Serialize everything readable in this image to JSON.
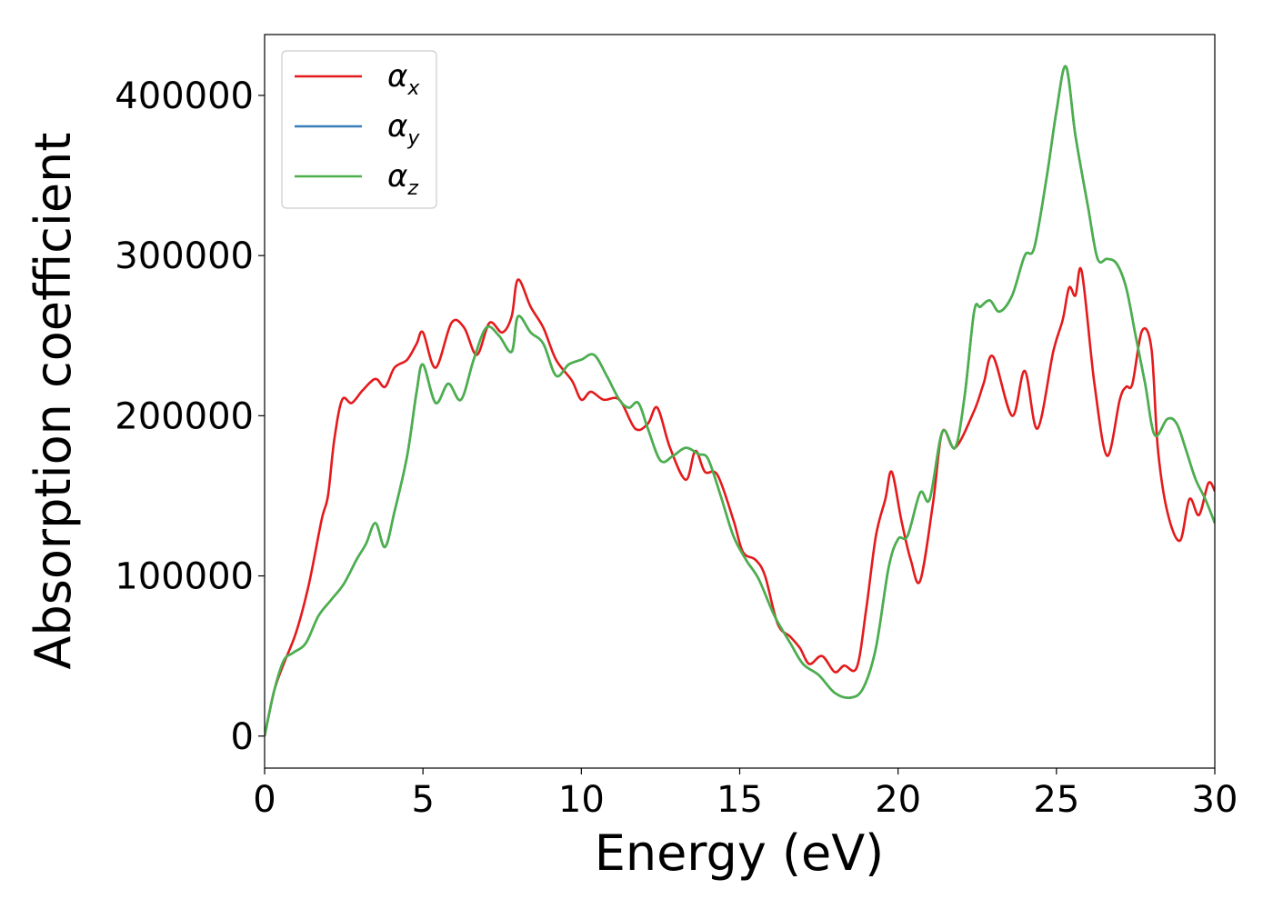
{
  "chart_data": {
    "type": "line",
    "title": "",
    "xlabel": "Energy (eV)",
    "ylabel": "Absorption coefficient",
    "xlim": [
      0,
      30
    ],
    "ylim": [
      -20000,
      438000
    ],
    "xticks": [
      0,
      5,
      10,
      15,
      20,
      25,
      30
    ],
    "xtick_labels": [
      "0",
      "5",
      "10",
      "15",
      "20",
      "25",
      "30"
    ],
    "yticks": [
      0,
      100000,
      200000,
      300000,
      400000
    ],
    "ytick_labels": [
      "0",
      "100000",
      "200000",
      "300000",
      "400000"
    ],
    "grid": false,
    "legend_position": "top-left",
    "series": [
      {
        "name": "α_x",
        "legend_base": "α",
        "legend_sub": "x",
        "color": "#e41a1c",
        "points": [
          [
            0,
            0
          ],
          [
            0.3,
            28000
          ],
          [
            0.6,
            45000
          ],
          [
            1.0,
            65000
          ],
          [
            1.4,
            95000
          ],
          [
            1.8,
            135000
          ],
          [
            2.0,
            150000
          ],
          [
            2.2,
            185000
          ],
          [
            2.45,
            210000
          ],
          [
            2.75,
            208000
          ],
          [
            3.1,
            216000
          ],
          [
            3.5,
            223000
          ],
          [
            3.8,
            218000
          ],
          [
            4.1,
            230000
          ],
          [
            4.5,
            235000
          ],
          [
            4.8,
            245000
          ],
          [
            5.0,
            252000
          ],
          [
            5.4,
            230000
          ],
          [
            5.9,
            258000
          ],
          [
            6.3,
            255000
          ],
          [
            6.7,
            238000
          ],
          [
            7.1,
            258000
          ],
          [
            7.5,
            252000
          ],
          [
            7.8,
            262000
          ],
          [
            8.0,
            285000
          ],
          [
            8.4,
            268000
          ],
          [
            8.8,
            255000
          ],
          [
            9.2,
            235000
          ],
          [
            9.7,
            222000
          ],
          [
            10.0,
            210000
          ],
          [
            10.3,
            215000
          ],
          [
            10.7,
            210000
          ],
          [
            11.2,
            210000
          ],
          [
            11.7,
            192000
          ],
          [
            12.1,
            195000
          ],
          [
            12.4,
            205000
          ],
          [
            12.8,
            180000
          ],
          [
            13.3,
            160000
          ],
          [
            13.6,
            178000
          ],
          [
            13.9,
            165000
          ],
          [
            14.3,
            163000
          ],
          [
            14.8,
            135000
          ],
          [
            15.1,
            115000
          ],
          [
            15.5,
            110000
          ],
          [
            15.8,
            100000
          ],
          [
            16.2,
            70000
          ],
          [
            16.6,
            62000
          ],
          [
            16.9,
            55000
          ],
          [
            17.2,
            45000
          ],
          [
            17.6,
            50000
          ],
          [
            18.0,
            40000
          ],
          [
            18.3,
            44000
          ],
          [
            18.7,
            43000
          ],
          [
            19.0,
            80000
          ],
          [
            19.3,
            125000
          ],
          [
            19.6,
            148000
          ],
          [
            19.8,
            165000
          ],
          [
            20.1,
            135000
          ],
          [
            20.4,
            110000
          ],
          [
            20.7,
            97000
          ],
          [
            21.1,
            145000
          ],
          [
            21.4,
            190000
          ],
          [
            21.8,
            180000
          ],
          [
            22.4,
            203000
          ],
          [
            22.7,
            220000
          ],
          [
            23.0,
            237000
          ],
          [
            23.6,
            200000
          ],
          [
            24.0,
            228000
          ],
          [
            24.4,
            192000
          ],
          [
            24.9,
            240000
          ],
          [
            25.2,
            260000
          ],
          [
            25.4,
            280000
          ],
          [
            25.6,
            275000
          ],
          [
            25.8,
            290000
          ],
          [
            26.2,
            220000
          ],
          [
            26.6,
            175000
          ],
          [
            27.0,
            210000
          ],
          [
            27.2,
            218000
          ],
          [
            27.4,
            220000
          ],
          [
            27.7,
            253000
          ],
          [
            28.0,
            242000
          ],
          [
            28.2,
            180000
          ],
          [
            28.5,
            140000
          ],
          [
            28.9,
            122000
          ],
          [
            29.2,
            148000
          ],
          [
            29.5,
            138000
          ],
          [
            29.8,
            158000
          ],
          [
            30.0,
            153000
          ]
        ]
      },
      {
        "name": "α_y",
        "legend_base": "α",
        "legend_sub": "y",
        "color": "#377eb8",
        "points": [
          [
            0,
            0
          ],
          [
            0.3,
            28000
          ],
          [
            0.6,
            47000
          ],
          [
            0.9,
            52000
          ],
          [
            1.3,
            58000
          ],
          [
            1.7,
            75000
          ],
          [
            2.1,
            85000
          ],
          [
            2.5,
            95000
          ],
          [
            2.9,
            110000
          ],
          [
            3.2,
            120000
          ],
          [
            3.5,
            133000
          ],
          [
            3.8,
            118000
          ],
          [
            4.1,
            140000
          ],
          [
            4.5,
            175000
          ],
          [
            4.8,
            215000
          ],
          [
            5.0,
            232000
          ],
          [
            5.4,
            208000
          ],
          [
            5.8,
            220000
          ],
          [
            6.2,
            210000
          ],
          [
            6.6,
            235000
          ],
          [
            7.0,
            255000
          ],
          [
            7.4,
            250000
          ],
          [
            7.8,
            240000
          ],
          [
            8.0,
            262000
          ],
          [
            8.4,
            252000
          ],
          [
            8.8,
            245000
          ],
          [
            9.2,
            225000
          ],
          [
            9.6,
            232000
          ],
          [
            10.0,
            235000
          ],
          [
            10.4,
            238000
          ],
          [
            10.8,
            225000
          ],
          [
            11.2,
            210000
          ],
          [
            11.5,
            205000
          ],
          [
            11.8,
            208000
          ],
          [
            12.1,
            192000
          ],
          [
            12.5,
            172000
          ],
          [
            12.9,
            175000
          ],
          [
            13.3,
            180000
          ],
          [
            13.7,
            176000
          ],
          [
            14.0,
            173000
          ],
          [
            14.4,
            150000
          ],
          [
            14.8,
            125000
          ],
          [
            15.2,
            110000
          ],
          [
            15.6,
            98000
          ],
          [
            16.1,
            75000
          ],
          [
            16.6,
            58000
          ],
          [
            17.0,
            45000
          ],
          [
            17.5,
            38000
          ],
          [
            18.0,
            27000
          ],
          [
            18.5,
            24000
          ],
          [
            18.9,
            30000
          ],
          [
            19.3,
            55000
          ],
          [
            19.7,
            105000
          ],
          [
            20.0,
            123000
          ],
          [
            20.3,
            125000
          ],
          [
            20.7,
            152000
          ],
          [
            21.0,
            148000
          ],
          [
            21.4,
            190000
          ],
          [
            21.8,
            180000
          ],
          [
            22.1,
            212000
          ],
          [
            22.4,
            265000
          ],
          [
            22.6,
            268000
          ],
          [
            22.9,
            272000
          ],
          [
            23.2,
            265000
          ],
          [
            23.6,
            275000
          ],
          [
            24.0,
            300000
          ],
          [
            24.3,
            305000
          ],
          [
            24.7,
            350000
          ],
          [
            25.0,
            390000
          ],
          [
            25.3,
            418000
          ],
          [
            25.6,
            375000
          ],
          [
            26.0,
            330000
          ],
          [
            26.3,
            298000
          ],
          [
            26.6,
            298000
          ],
          [
            26.9,
            295000
          ],
          [
            27.2,
            280000
          ],
          [
            27.5,
            250000
          ],
          [
            27.8,
            220000
          ],
          [
            28.1,
            188000
          ],
          [
            28.5,
            198000
          ],
          [
            28.8,
            195000
          ],
          [
            29.1,
            178000
          ],
          [
            29.4,
            160000
          ],
          [
            29.7,
            148000
          ],
          [
            30.0,
            133000
          ]
        ]
      },
      {
        "name": "α_z",
        "legend_base": "α",
        "legend_sub": "z",
        "color": "#4daf4a",
        "points": [
          [
            0,
            0
          ],
          [
            0.3,
            28000
          ],
          [
            0.6,
            47000
          ],
          [
            0.9,
            52000
          ],
          [
            1.3,
            58000
          ],
          [
            1.7,
            75000
          ],
          [
            2.1,
            85000
          ],
          [
            2.5,
            95000
          ],
          [
            2.9,
            110000
          ],
          [
            3.2,
            120000
          ],
          [
            3.5,
            133000
          ],
          [
            3.8,
            118000
          ],
          [
            4.1,
            140000
          ],
          [
            4.5,
            175000
          ],
          [
            4.8,
            215000
          ],
          [
            5.0,
            232000
          ],
          [
            5.4,
            208000
          ],
          [
            5.8,
            220000
          ],
          [
            6.2,
            210000
          ],
          [
            6.6,
            235000
          ],
          [
            7.0,
            255000
          ],
          [
            7.4,
            250000
          ],
          [
            7.8,
            240000
          ],
          [
            8.0,
            262000
          ],
          [
            8.4,
            252000
          ],
          [
            8.8,
            245000
          ],
          [
            9.2,
            225000
          ],
          [
            9.6,
            232000
          ],
          [
            10.0,
            235000
          ],
          [
            10.4,
            238000
          ],
          [
            10.8,
            225000
          ],
          [
            11.2,
            210000
          ],
          [
            11.5,
            205000
          ],
          [
            11.8,
            208000
          ],
          [
            12.1,
            192000
          ],
          [
            12.5,
            172000
          ],
          [
            12.9,
            175000
          ],
          [
            13.3,
            180000
          ],
          [
            13.7,
            176000
          ],
          [
            14.0,
            173000
          ],
          [
            14.4,
            150000
          ],
          [
            14.8,
            125000
          ],
          [
            15.2,
            110000
          ],
          [
            15.6,
            98000
          ],
          [
            16.1,
            75000
          ],
          [
            16.6,
            58000
          ],
          [
            17.0,
            45000
          ],
          [
            17.5,
            38000
          ],
          [
            18.0,
            27000
          ],
          [
            18.5,
            24000
          ],
          [
            18.9,
            30000
          ],
          [
            19.3,
            55000
          ],
          [
            19.7,
            105000
          ],
          [
            20.0,
            123000
          ],
          [
            20.3,
            125000
          ],
          [
            20.7,
            152000
          ],
          [
            21.0,
            148000
          ],
          [
            21.4,
            190000
          ],
          [
            21.8,
            180000
          ],
          [
            22.1,
            212000
          ],
          [
            22.4,
            265000
          ],
          [
            22.6,
            268000
          ],
          [
            22.9,
            272000
          ],
          [
            23.2,
            265000
          ],
          [
            23.6,
            275000
          ],
          [
            24.0,
            300000
          ],
          [
            24.3,
            305000
          ],
          [
            24.7,
            350000
          ],
          [
            25.0,
            390000
          ],
          [
            25.3,
            418000
          ],
          [
            25.6,
            375000
          ],
          [
            26.0,
            330000
          ],
          [
            26.3,
            298000
          ],
          [
            26.6,
            298000
          ],
          [
            26.9,
            295000
          ],
          [
            27.2,
            280000
          ],
          [
            27.5,
            250000
          ],
          [
            27.8,
            220000
          ],
          [
            28.1,
            188000
          ],
          [
            28.5,
            198000
          ],
          [
            28.8,
            195000
          ],
          [
            29.1,
            178000
          ],
          [
            29.4,
            160000
          ],
          [
            29.7,
            148000
          ],
          [
            30.0,
            133000
          ]
        ]
      }
    ]
  }
}
